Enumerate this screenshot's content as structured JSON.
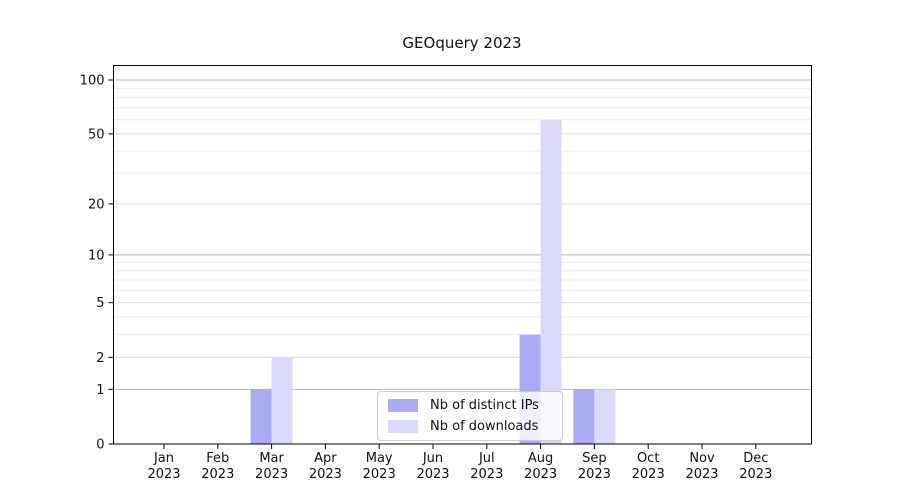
{
  "title": "GEOquery 2023",
  "chart_data": {
    "type": "bar",
    "title": "GEOquery 2023",
    "categories": [
      "Jan 2023",
      "Feb 2023",
      "Mar 2023",
      "Apr 2023",
      "May 2023",
      "Jun 2023",
      "Jul 2023",
      "Aug 2023",
      "Sep 2023",
      "Oct 2023",
      "Nov 2023",
      "Dec 2023"
    ],
    "series": [
      {
        "name": "Nb of distinct IPs",
        "color": "#aaaaf5",
        "values": [
          0,
          0,
          1,
          0,
          0,
          0,
          0,
          3,
          1,
          0,
          0,
          0
        ]
      },
      {
        "name": "Nb of downloads",
        "color": "#dadaf8",
        "values": [
          0,
          0,
          2,
          0,
          0,
          0,
          0,
          60,
          1,
          0,
          0,
          0
        ]
      }
    ],
    "y_axis": {
      "scale": "log1p",
      "range": [
        0,
        100
      ],
      "ticks": [
        0,
        1,
        2,
        5,
        10,
        20,
        50,
        100
      ],
      "minor_gridlines": [
        3,
        4,
        6,
        7,
        8,
        9,
        30,
        40,
        60,
        70,
        80,
        90
      ]
    },
    "xlabel": "",
    "ylabel": "",
    "grid": "horizontal",
    "legend_position": "inside-bottom-center"
  }
}
